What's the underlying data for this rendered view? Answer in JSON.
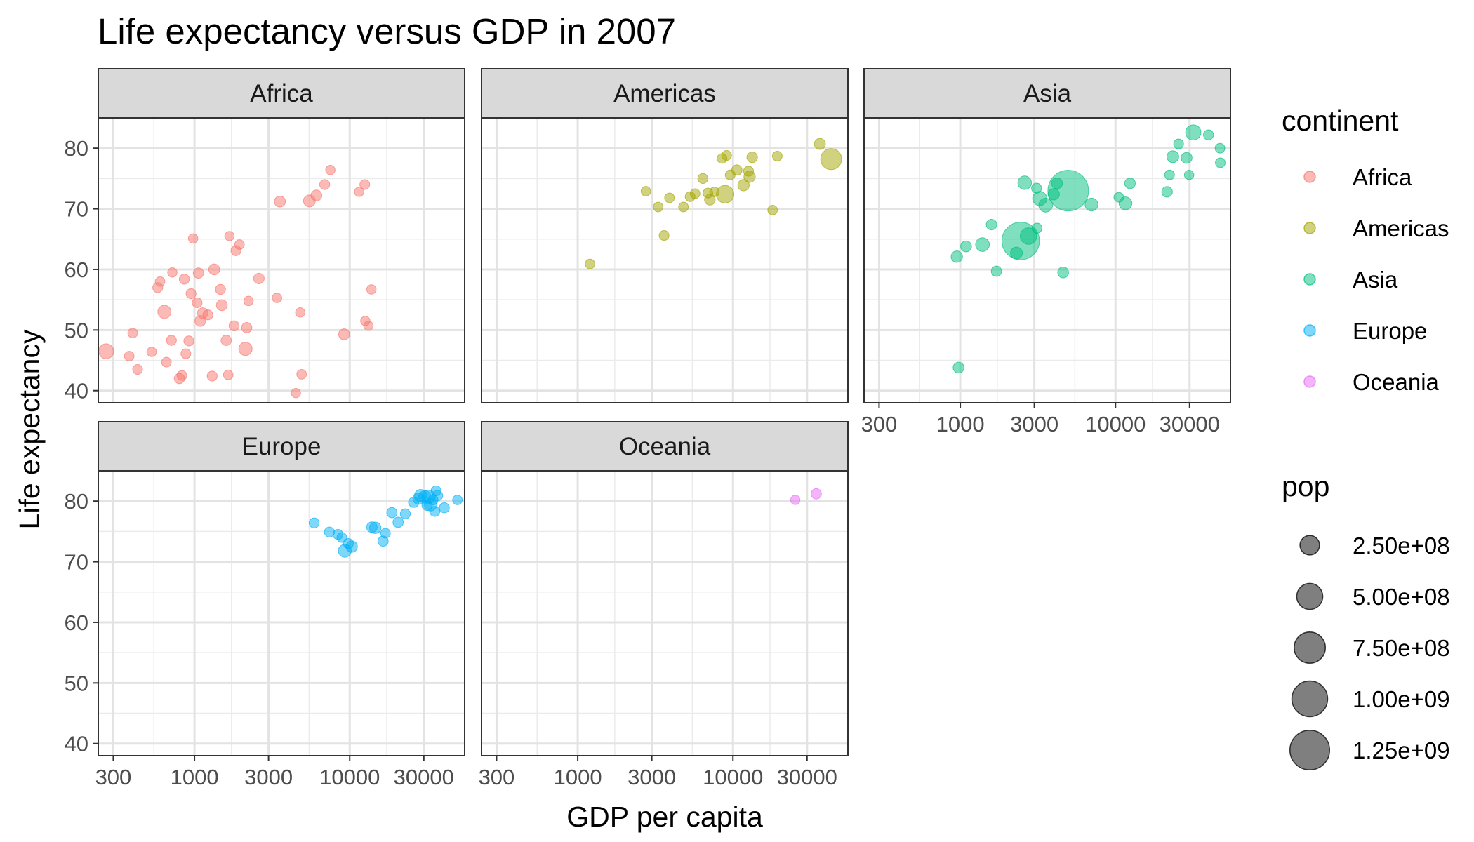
{
  "chart_data": {
    "type": "scatter",
    "title": "Life expectancy versus GDP in 2007",
    "xlabel": "GDP per capita",
    "ylabel": "Life expectancy",
    "x_scale": "log10",
    "xlim": [
      240,
      55000
    ],
    "ylim": [
      38,
      85
    ],
    "x_ticks": [
      300,
      1000,
      3000,
      10000,
      30000
    ],
    "x_tick_labels": [
      "300",
      "1000",
      "3000",
      "10000",
      "30000"
    ],
    "y_ticks": [
      40,
      50,
      60,
      70,
      80
    ],
    "y_tick_labels": [
      "40",
      "50",
      "60",
      "70",
      "80"
    ],
    "grid": true,
    "legend_position": "right",
    "size_variable": "pop",
    "color_variable": "continent",
    "facets": [
      {
        "name": "Africa",
        "color": "#F8766D",
        "points": [
          {
            "x": 270,
            "y": 46.5,
            "pop": 120000000
          },
          {
            "x": 400,
            "y": 49.5,
            "pop": 10000000
          },
          {
            "x": 380,
            "y": 45.7,
            "pop": 8000000
          },
          {
            "x": 430,
            "y": 43.5,
            "pop": 12000000
          },
          {
            "x": 530,
            "y": 46.4,
            "pop": 8000000
          },
          {
            "x": 580,
            "y": 57.0,
            "pop": 15000000
          },
          {
            "x": 600,
            "y": 58.0,
            "pop": 8000000
          },
          {
            "x": 640,
            "y": 53.0,
            "pop": 76000000
          },
          {
            "x": 660,
            "y": 44.7,
            "pop": 10000000
          },
          {
            "x": 720,
            "y": 59.5,
            "pop": 5000000
          },
          {
            "x": 710,
            "y": 48.3,
            "pop": 15000000
          },
          {
            "x": 800,
            "y": 42.0,
            "pop": 20000000
          },
          {
            "x": 830,
            "y": 42.5,
            "pop": 12000000
          },
          {
            "x": 860,
            "y": 58.4,
            "pop": 15000000
          },
          {
            "x": 880,
            "y": 46.1,
            "pop": 12000000
          },
          {
            "x": 920,
            "y": 48.2,
            "pop": 15000000
          },
          {
            "x": 950,
            "y": 56.0,
            "pop": 15000000
          },
          {
            "x": 980,
            "y": 65.1,
            "pop": 5000000
          },
          {
            "x": 1040,
            "y": 54.5,
            "pop": 12000000
          },
          {
            "x": 1060,
            "y": 59.4,
            "pop": 20000000
          },
          {
            "x": 1090,
            "y": 51.5,
            "pop": 30000000
          },
          {
            "x": 1130,
            "y": 52.8,
            "pop": 25000000
          },
          {
            "x": 1220,
            "y": 52.5,
            "pop": 15000000
          },
          {
            "x": 1300,
            "y": 42.4,
            "pop": 15000000
          },
          {
            "x": 1340,
            "y": 60.0,
            "pop": 30000000
          },
          {
            "x": 1470,
            "y": 56.7,
            "pop": 15000000
          },
          {
            "x": 1500,
            "y": 54.1,
            "pop": 30000000
          },
          {
            "x": 1600,
            "y": 48.3,
            "pop": 20000000
          },
          {
            "x": 1650,
            "y": 42.6,
            "pop": 8000000
          },
          {
            "x": 1680,
            "y": 65.5,
            "pop": 5000000
          },
          {
            "x": 1800,
            "y": 50.7,
            "pop": 15000000
          },
          {
            "x": 1850,
            "y": 63.1,
            "pop": 15000000
          },
          {
            "x": 1950,
            "y": 64.1,
            "pop": 8000000
          },
          {
            "x": 2130,
            "y": 46.9,
            "pop": 80000000
          },
          {
            "x": 2170,
            "y": 50.4,
            "pop": 20000000
          },
          {
            "x": 2230,
            "y": 54.8,
            "pop": 5000000
          },
          {
            "x": 2600,
            "y": 58.5,
            "pop": 25000000
          },
          {
            "x": 3400,
            "y": 55.3,
            "pop": 8000000
          },
          {
            "x": 3550,
            "y": 71.2,
            "pop": 33000000
          },
          {
            "x": 4500,
            "y": 39.6,
            "pop": 5000000
          },
          {
            "x": 4800,
            "y": 52.9,
            "pop": 5000000
          },
          {
            "x": 4900,
            "y": 42.7,
            "pop": 10000000
          },
          {
            "x": 5500,
            "y": 71.3,
            "pop": 50000000
          },
          {
            "x": 6100,
            "y": 72.2,
            "pop": 30000000
          },
          {
            "x": 6900,
            "y": 74.0,
            "pop": 15000000
          },
          {
            "x": 7500,
            "y": 76.4,
            "pop": 5000000
          },
          {
            "x": 9200,
            "y": 49.3,
            "pop": 30000000
          },
          {
            "x": 11500,
            "y": 72.8,
            "pop": 5000000
          },
          {
            "x": 12500,
            "y": 74.0,
            "pop": 12000000
          },
          {
            "x": 12600,
            "y": 51.5,
            "pop": 5000000
          },
          {
            "x": 13200,
            "y": 50.7,
            "pop": 5000000
          },
          {
            "x": 13800,
            "y": 56.7,
            "pop": 5000000
          }
        ]
      },
      {
        "name": "Americas",
        "color": "#A3A500",
        "points": [
          {
            "x": 1200,
            "y": 60.9,
            "pop": 9000000
          },
          {
            "x": 2750,
            "y": 72.9,
            "pop": 8000000
          },
          {
            "x": 3300,
            "y": 70.3,
            "pop": 8000000
          },
          {
            "x": 3600,
            "y": 65.6,
            "pop": 12000000
          },
          {
            "x": 3900,
            "y": 71.8,
            "pop": 10000000
          },
          {
            "x": 4800,
            "y": 70.3,
            "pop": 10000000
          },
          {
            "x": 5300,
            "y": 72.0,
            "pop": 12000000
          },
          {
            "x": 5700,
            "y": 72.5,
            "pop": 10000000
          },
          {
            "x": 6400,
            "y": 75.0,
            "pop": 15000000
          },
          {
            "x": 6900,
            "y": 72.6,
            "pop": 12000000
          },
          {
            "x": 7100,
            "y": 71.5,
            "pop": 28000000
          },
          {
            "x": 7600,
            "y": 72.8,
            "pop": 8000000
          },
          {
            "x": 8500,
            "y": 78.3,
            "pop": 10000000
          },
          {
            "x": 8900,
            "y": 72.4,
            "pop": 190000000
          },
          {
            "x": 9100,
            "y": 78.8,
            "pop": 12000000
          },
          {
            "x": 9600,
            "y": 75.6,
            "pop": 12000000
          },
          {
            "x": 10600,
            "y": 76.4,
            "pop": 20000000
          },
          {
            "x": 11700,
            "y": 73.9,
            "pop": 40000000
          },
          {
            "x": 12600,
            "y": 76.2,
            "pop": 15000000
          },
          {
            "x": 12800,
            "y": 75.3,
            "pop": 40000000
          },
          {
            "x": 13300,
            "y": 78.5,
            "pop": 25000000
          },
          {
            "x": 18000,
            "y": 69.8,
            "pop": 8000000
          },
          {
            "x": 19300,
            "y": 78.7,
            "pop": 10000000
          },
          {
            "x": 36300,
            "y": 80.7,
            "pop": 33000000
          },
          {
            "x": 42900,
            "y": 78.2,
            "pop": 301000000
          }
        ]
      },
      {
        "name": "Asia",
        "color": "#00BF7D",
        "points": [
          {
            "x": 950,
            "y": 62.1,
            "pop": 40000000
          },
          {
            "x": 975,
            "y": 43.8,
            "pop": 30000000
          },
          {
            "x": 1090,
            "y": 63.8,
            "pop": 30000000
          },
          {
            "x": 1390,
            "y": 64.1,
            "pop": 90000000
          },
          {
            "x": 1590,
            "y": 67.4,
            "pop": 25000000
          },
          {
            "x": 1710,
            "y": 59.7,
            "pop": 20000000
          },
          {
            "x": 2300,
            "y": 62.7,
            "pop": 50000000
          },
          {
            "x": 2450,
            "y": 64.7,
            "pop": 1110000000
          },
          {
            "x": 2600,
            "y": 74.3,
            "pop": 85000000
          },
          {
            "x": 2750,
            "y": 65.5,
            "pop": 160000000
          },
          {
            "x": 3100,
            "y": 73.4,
            "pop": 15000000
          },
          {
            "x": 3120,
            "y": 66.8,
            "pop": 15000000
          },
          {
            "x": 3250,
            "y": 71.7,
            "pop": 100000000
          },
          {
            "x": 3550,
            "y": 70.6,
            "pop": 90000000
          },
          {
            "x": 4000,
            "y": 72.4,
            "pop": 40000000
          },
          {
            "x": 4200,
            "y": 74.2,
            "pop": 30000000
          },
          {
            "x": 4600,
            "y": 59.5,
            "pop": 30000000
          },
          {
            "x": 4960,
            "y": 73.0,
            "pop": 1318000000
          },
          {
            "x": 7000,
            "y": 70.7,
            "pop": 70000000
          },
          {
            "x": 10500,
            "y": 71.9,
            "pop": 10000000
          },
          {
            "x": 11600,
            "y": 70.9,
            "pop": 70000000
          },
          {
            "x": 12400,
            "y": 74.2,
            "pop": 25000000
          },
          {
            "x": 21500,
            "y": 72.8,
            "pop": 25000000
          },
          {
            "x": 22300,
            "y": 75.6,
            "pop": 10000000
          },
          {
            "x": 23400,
            "y": 78.6,
            "pop": 48000000
          },
          {
            "x": 25500,
            "y": 80.7,
            "pop": 12000000
          },
          {
            "x": 28700,
            "y": 78.4,
            "pop": 30000000
          },
          {
            "x": 29800,
            "y": 75.6,
            "pop": 5000000
          },
          {
            "x": 31700,
            "y": 82.6,
            "pop": 127000000
          },
          {
            "x": 39700,
            "y": 82.2,
            "pop": 15000000
          },
          {
            "x": 47100,
            "y": 80.0,
            "pop": 10000000
          },
          {
            "x": 47300,
            "y": 77.6,
            "pop": 10000000
          }
        ]
      },
      {
        "name": "Europe",
        "color": "#00B0F6",
        "points": [
          {
            "x": 5900,
            "y": 76.4,
            "pop": 15000000
          },
          {
            "x": 7400,
            "y": 74.9,
            "pop": 15000000
          },
          {
            "x": 8400,
            "y": 74.5,
            "pop": 15000000
          },
          {
            "x": 8900,
            "y": 74.0,
            "pop": 12000000
          },
          {
            "x": 9300,
            "y": 71.8,
            "pop": 71000000
          },
          {
            "x": 9800,
            "y": 73.0,
            "pop": 15000000
          },
          {
            "x": 10300,
            "y": 72.5,
            "pop": 40000000
          },
          {
            "x": 13900,
            "y": 75.7,
            "pop": 25000000
          },
          {
            "x": 14600,
            "y": 75.6,
            "pop": 40000000
          },
          {
            "x": 16400,
            "y": 73.4,
            "pop": 20000000
          },
          {
            "x": 17000,
            "y": 74.7,
            "pop": 10000000
          },
          {
            "x": 18700,
            "y": 78.1,
            "pop": 20000000
          },
          {
            "x": 20500,
            "y": 76.5,
            "pop": 20000000
          },
          {
            "x": 22800,
            "y": 77.9,
            "pop": 15000000
          },
          {
            "x": 25800,
            "y": 79.8,
            "pop": 20000000
          },
          {
            "x": 27800,
            "y": 80.4,
            "pop": 40000000
          },
          {
            "x": 28600,
            "y": 80.9,
            "pop": 58000000
          },
          {
            "x": 30500,
            "y": 80.7,
            "pop": 61000000
          },
          {
            "x": 31500,
            "y": 79.3,
            "pop": 20000000
          },
          {
            "x": 32200,
            "y": 80.7,
            "pop": 82000000
          },
          {
            "x": 33200,
            "y": 79.4,
            "pop": 60000000
          },
          {
            "x": 34400,
            "y": 80.2,
            "pop": 15000000
          },
          {
            "x": 35300,
            "y": 78.3,
            "pop": 15000000
          },
          {
            "x": 36000,
            "y": 81.7,
            "pop": 15000000
          },
          {
            "x": 36800,
            "y": 80.9,
            "pop": 20000000
          },
          {
            "x": 40700,
            "y": 78.9,
            "pop": 15000000
          },
          {
            "x": 49400,
            "y": 80.2,
            "pop": 8000000
          }
        ]
      },
      {
        "name": "Oceania",
        "color": "#E76BF3",
        "points": [
          {
            "x": 25200,
            "y": 80.2,
            "pop": 4100000
          },
          {
            "x": 34400,
            "y": 81.2,
            "pop": 20400000
          }
        ]
      }
    ],
    "legend": {
      "continent_title": "continent",
      "continent": [
        {
          "label": "Africa",
          "color": "#F8766D"
        },
        {
          "label": "Americas",
          "color": "#A3A500"
        },
        {
          "label": "Asia",
          "color": "#00BF7D"
        },
        {
          "label": "Europe",
          "color": "#00B0F6"
        },
        {
          "label": "Oceania",
          "color": "#E76BF3"
        }
      ],
      "pop_title": "pop",
      "pop": [
        {
          "label": "2.50e+08",
          "value": 250000000
        },
        {
          "label": "5.00e+08",
          "value": 500000000
        },
        {
          "label": "7.50e+08",
          "value": 750000000
        },
        {
          "label": "1.00e+09",
          "value": 1000000000
        },
        {
          "label": "1.25e+09",
          "value": 1250000000
        }
      ]
    }
  }
}
